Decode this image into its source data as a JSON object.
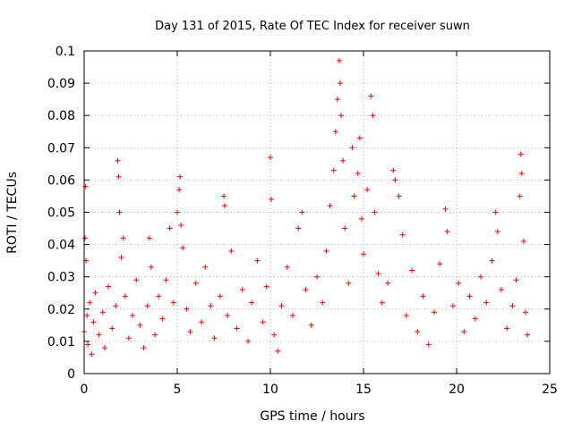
{
  "chart_data": {
    "type": "scatter",
    "title": "Day 131 of 2015, Rate Of TEC Index for receiver suwn",
    "xlabel": "GPS time / hours",
    "ylabel": "ROTI / TECUs",
    "xlim": [
      0,
      25
    ],
    "ylim": [
      0,
      0.1
    ],
    "xticks": [
      "0",
      "5",
      "10",
      "15",
      "20",
      "25"
    ],
    "yticks": [
      "0",
      "0.01",
      "0.02",
      "0.03",
      "0.04",
      "0.05",
      "0.06",
      "0.07",
      "0.08",
      "0.09",
      "0.1"
    ],
    "grid": true,
    "marker": "+",
    "color": "#ff0000",
    "series": [
      {
        "points": [
          [
            0.0,
            0.013
          ],
          [
            0.05,
            0.042
          ],
          [
            0.08,
            0.058
          ],
          [
            0.1,
            0.035
          ],
          [
            0.15,
            0.018
          ],
          [
            0.2,
            0.009
          ],
          [
            0.3,
            0.022
          ],
          [
            0.4,
            0.006
          ],
          [
            0.5,
            0.016
          ],
          [
            0.6,
            0.025
          ],
          [
            0.8,
            0.012
          ],
          [
            1.0,
            0.019
          ],
          [
            1.1,
            0.008
          ],
          [
            1.3,
            0.027
          ],
          [
            1.5,
            0.014
          ],
          [
            1.7,
            0.021
          ],
          [
            1.8,
            0.066
          ],
          [
            1.85,
            0.061
          ],
          [
            1.9,
            0.05
          ],
          [
            2.0,
            0.036
          ],
          [
            2.1,
            0.042
          ],
          [
            2.2,
            0.024
          ],
          [
            2.4,
            0.011
          ],
          [
            2.6,
            0.018
          ],
          [
            2.8,
            0.029
          ],
          [
            3.0,
            0.015
          ],
          [
            3.2,
            0.008
          ],
          [
            3.4,
            0.021
          ],
          [
            3.5,
            0.042
          ],
          [
            3.6,
            0.033
          ],
          [
            3.8,
            0.012
          ],
          [
            4.0,
            0.024
          ],
          [
            4.2,
            0.017
          ],
          [
            4.4,
            0.029
          ],
          [
            4.6,
            0.045
          ],
          [
            4.8,
            0.022
          ],
          [
            5.0,
            0.05
          ],
          [
            5.1,
            0.057
          ],
          [
            5.15,
            0.061
          ],
          [
            5.2,
            0.046
          ],
          [
            5.3,
            0.039
          ],
          [
            5.5,
            0.02
          ],
          [
            5.7,
            0.013
          ],
          [
            6.0,
            0.028
          ],
          [
            6.3,
            0.016
          ],
          [
            6.5,
            0.033
          ],
          [
            6.8,
            0.021
          ],
          [
            7.0,
            0.011
          ],
          [
            7.3,
            0.024
          ],
          [
            7.5,
            0.055
          ],
          [
            7.55,
            0.052
          ],
          [
            7.7,
            0.018
          ],
          [
            7.9,
            0.038
          ],
          [
            8.2,
            0.014
          ],
          [
            8.5,
            0.026
          ],
          [
            8.8,
            0.01
          ],
          [
            9.0,
            0.022
          ],
          [
            9.3,
            0.035
          ],
          [
            9.6,
            0.016
          ],
          [
            9.8,
            0.027
          ],
          [
            10.0,
            0.067
          ],
          [
            10.05,
            0.054
          ],
          [
            10.2,
            0.012
          ],
          [
            10.4,
            0.007
          ],
          [
            10.6,
            0.021
          ],
          [
            10.9,
            0.033
          ],
          [
            11.2,
            0.018
          ],
          [
            11.5,
            0.045
          ],
          [
            11.7,
            0.05
          ],
          [
            11.9,
            0.026
          ],
          [
            12.2,
            0.015
          ],
          [
            12.5,
            0.03
          ],
          [
            12.8,
            0.022
          ],
          [
            13.0,
            0.038
          ],
          [
            13.2,
            0.052
          ],
          [
            13.4,
            0.063
          ],
          [
            13.5,
            0.075
          ],
          [
            13.6,
            0.085
          ],
          [
            13.7,
            0.097
          ],
          [
            13.75,
            0.09
          ],
          [
            13.8,
            0.08
          ],
          [
            13.9,
            0.066
          ],
          [
            14.0,
            0.045
          ],
          [
            14.2,
            0.028
          ],
          [
            14.4,
            0.07
          ],
          [
            14.5,
            0.055
          ],
          [
            14.7,
            0.062
          ],
          [
            14.8,
            0.073
          ],
          [
            14.9,
            0.048
          ],
          [
            15.0,
            0.037
          ],
          [
            15.2,
            0.057
          ],
          [
            15.4,
            0.086
          ],
          [
            15.5,
            0.08
          ],
          [
            15.6,
            0.05
          ],
          [
            15.8,
            0.031
          ],
          [
            16.0,
            0.022
          ],
          [
            16.3,
            0.028
          ],
          [
            16.6,
            0.063
          ],
          [
            16.7,
            0.06
          ],
          [
            16.9,
            0.055
          ],
          [
            17.1,
            0.043
          ],
          [
            17.3,
            0.018
          ],
          [
            17.6,
            0.032
          ],
          [
            17.9,
            0.013
          ],
          [
            18.2,
            0.024
          ],
          [
            18.5,
            0.009
          ],
          [
            18.8,
            0.019
          ],
          [
            19.1,
            0.034
          ],
          [
            19.4,
            0.051
          ],
          [
            19.5,
            0.044
          ],
          [
            19.8,
            0.021
          ],
          [
            20.1,
            0.028
          ],
          [
            20.4,
            0.013
          ],
          [
            20.7,
            0.024
          ],
          [
            21.0,
            0.017
          ],
          [
            21.3,
            0.03
          ],
          [
            21.6,
            0.022
          ],
          [
            21.9,
            0.035
          ],
          [
            22.1,
            0.05
          ],
          [
            22.2,
            0.044
          ],
          [
            22.4,
            0.026
          ],
          [
            22.7,
            0.014
          ],
          [
            23.0,
            0.021
          ],
          [
            23.2,
            0.029
          ],
          [
            23.4,
            0.055
          ],
          [
            23.45,
            0.068
          ],
          [
            23.5,
            0.062
          ],
          [
            23.6,
            0.041
          ],
          [
            23.7,
            0.019
          ],
          [
            23.8,
            0.012
          ]
        ]
      }
    ]
  }
}
